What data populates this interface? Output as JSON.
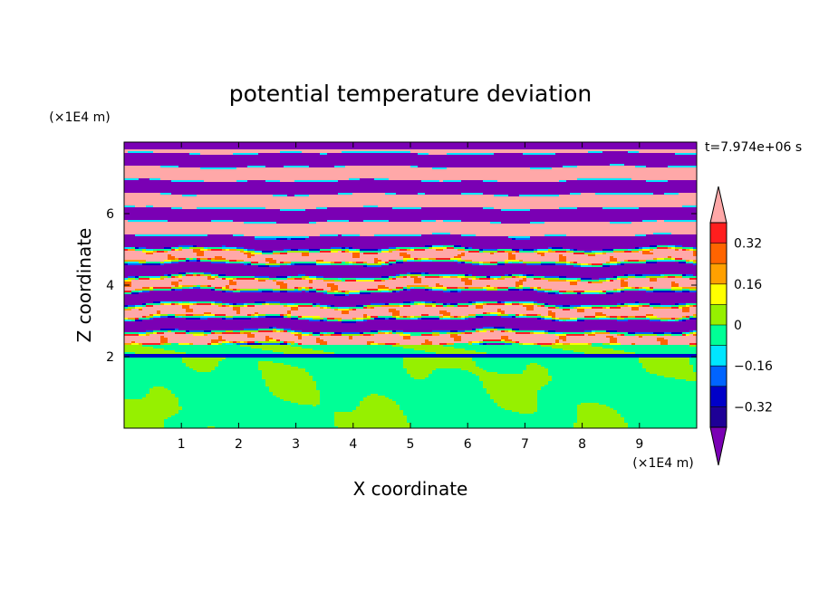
{
  "chart_data": {
    "type": "heatmap",
    "title": "potential temperature deviation",
    "xlabel": "X coordinate",
    "ylabel": "Z coordinate",
    "x_unit": "(×1E4 m)",
    "y_unit": "(×1E4 m)",
    "time_label": "t=7.974e+06 s",
    "xlim": [
      0,
      10
    ],
    "ylim": [
      0,
      8
    ],
    "x_ticks": [
      1,
      2,
      3,
      4,
      5,
      6,
      7,
      8,
      9
    ],
    "y_ticks": [
      2,
      4,
      6
    ],
    "colorbar": {
      "levels": [
        -0.4,
        -0.32,
        -0.24,
        -0.16,
        -0.08,
        0,
        0.08,
        0.16,
        0.24,
        0.32,
        0.4
      ],
      "labels": [
        "0.32",
        "0.16",
        "0",
        "−0.16",
        "−0.32"
      ],
      "label_values": [
        0.32,
        0.16,
        0,
        -0.16,
        -0.32
      ],
      "colors": [
        "#7a00b4",
        "#1e0096",
        "#0000c8",
        "#0064ff",
        "#00e6ff",
        "#00ff96",
        "#96f000",
        "#ffff00",
        "#ffa000",
        "#ff6400",
        "#ff1e1e",
        "#ffa8a8"
      ],
      "over_color": "#ffa8a8",
      "under_color": "#7a00b4"
    },
    "field_description_bands": [
      {
        "z": [
          0.0,
          2.0
        ],
        "dominant": "#00ff96",
        "secondary": "#96f000"
      },
      {
        "z": [
          2.0,
          2.3
        ],
        "dominant": "#00ff96",
        "secondary": "#96f000"
      },
      {
        "z": [
          2.3,
          5.3
        ],
        "dominant": "mixed",
        "secondary": "layered"
      },
      {
        "z": [
          5.3,
          8.0
        ],
        "dominant": "#7a00b4",
        "secondary": "#ffa8a8"
      }
    ]
  }
}
